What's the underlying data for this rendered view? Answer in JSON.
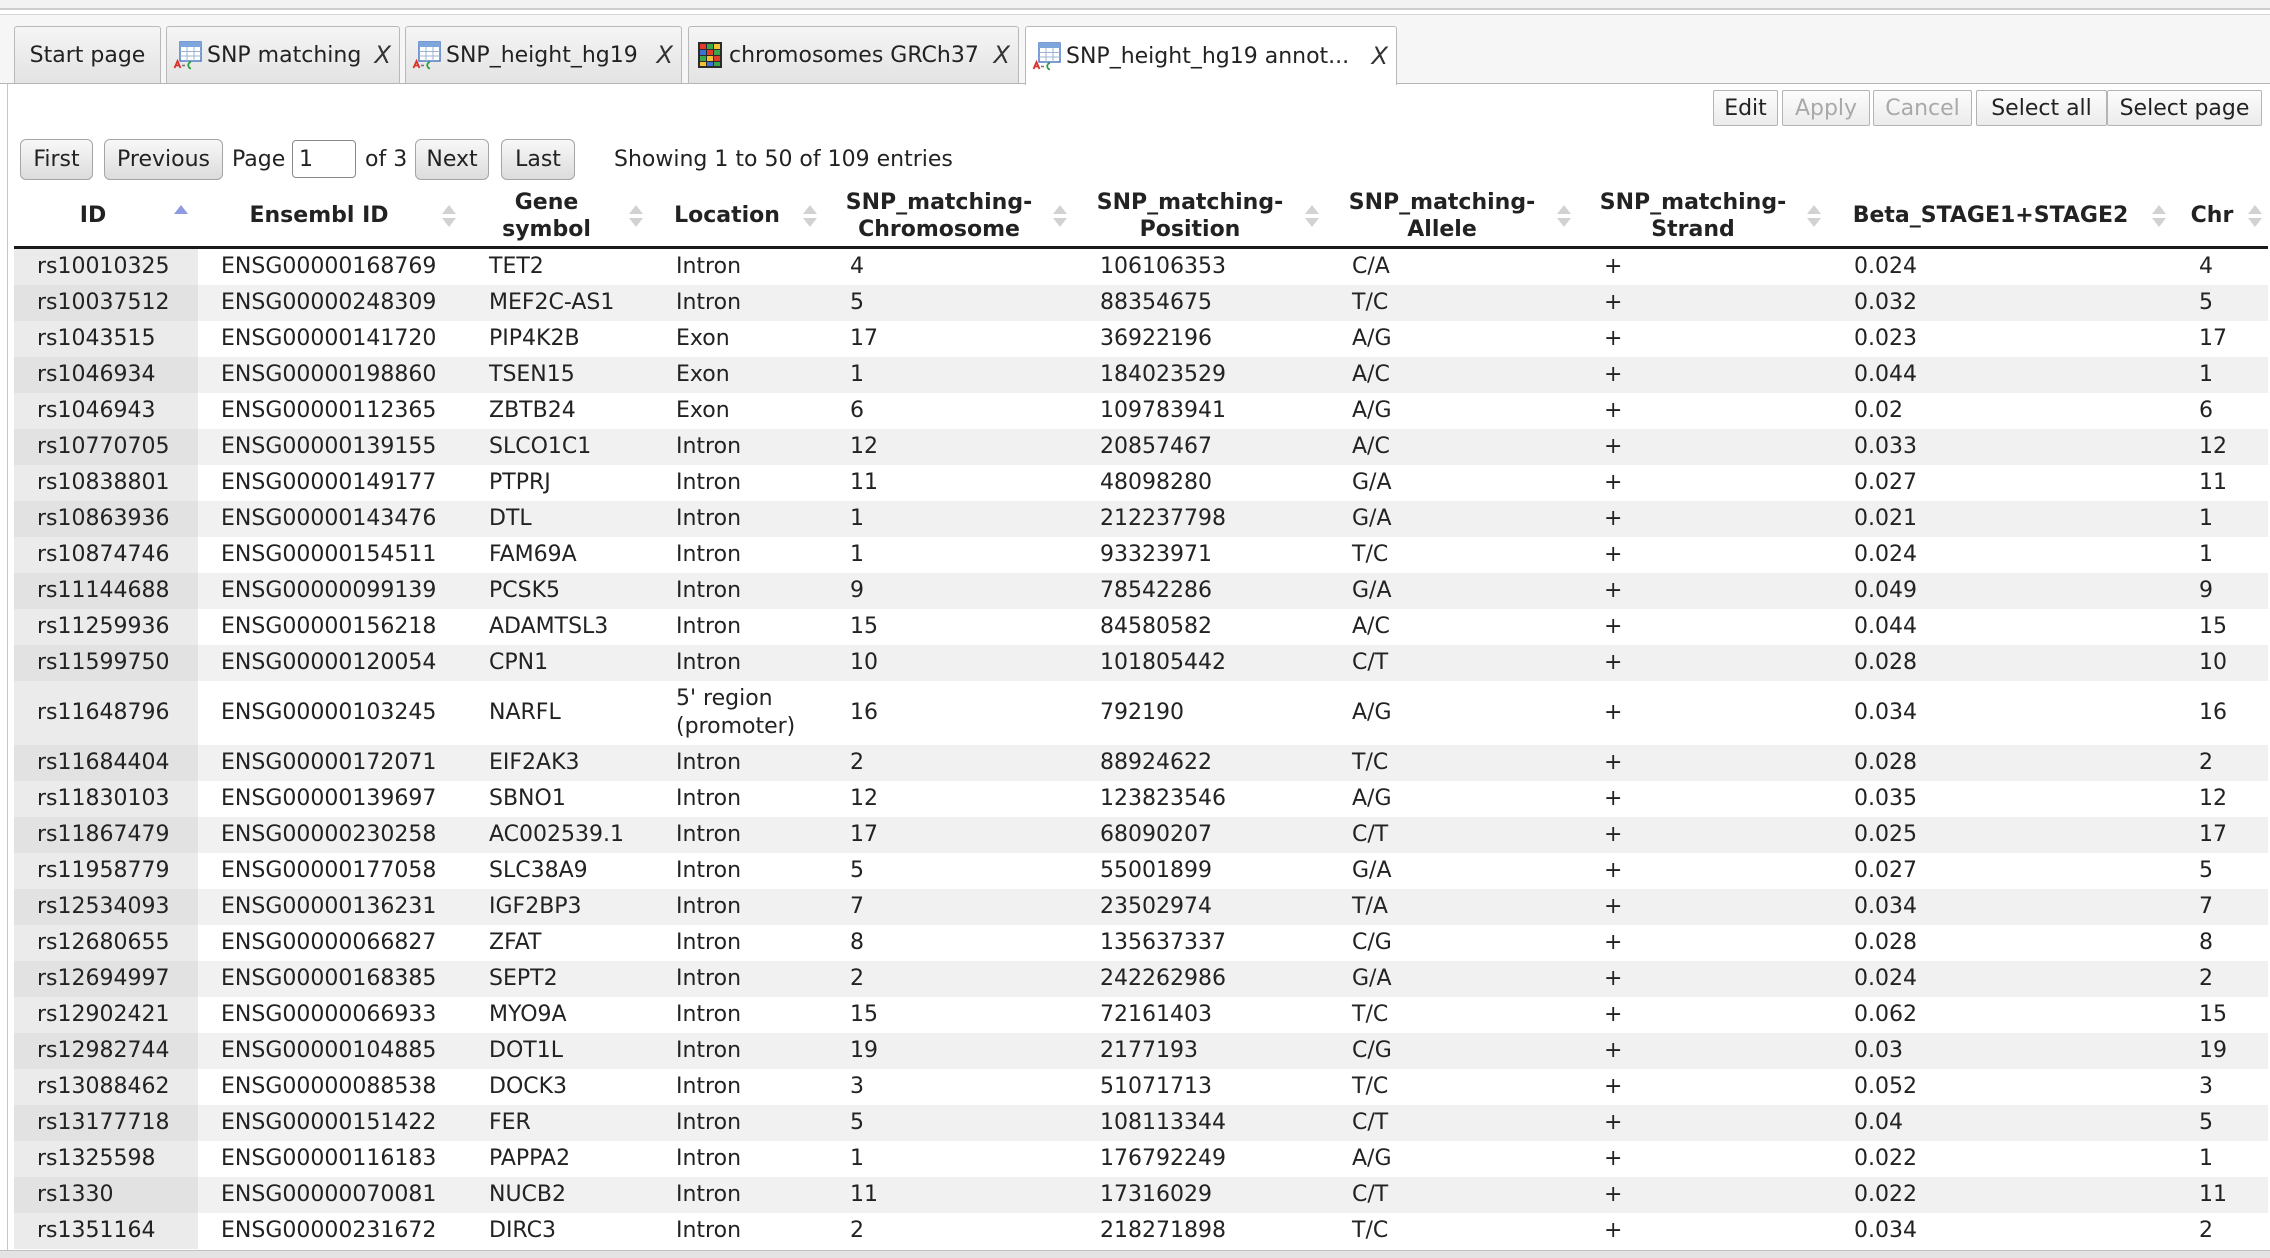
{
  "tabs": [
    {
      "label": "Start page"
    },
    {
      "label": "SNP matching",
      "icon": "table-icon",
      "close": "X"
    },
    {
      "label": "SNP_height_hg19",
      "icon": "table-icon",
      "close": "X"
    },
    {
      "label": "chromosomes GRCh37",
      "icon": "chromosome-grid-icon",
      "close": "X"
    },
    {
      "label": "SNP_height_hg19 annot...",
      "icon": "table-icon",
      "close": "X",
      "active": true
    }
  ],
  "toolbar": {
    "edit": {
      "label": "Edit",
      "enabled": true
    },
    "apply": {
      "label": "Apply",
      "enabled": false
    },
    "cancel": {
      "label": "Cancel",
      "enabled": false
    },
    "select_all": {
      "label": "Select all",
      "enabled": true
    },
    "select_page": {
      "label": "Select page",
      "enabled": true
    }
  },
  "pagination": {
    "first": "First",
    "previous": "Previous",
    "page_label": "Page",
    "page_value": "1",
    "of_label": "of 3",
    "next": "Next",
    "last": "Last",
    "info": "Showing 1 to 50 of 109 entries"
  },
  "table": {
    "columns": [
      "ID",
      "Ensembl ID",
      "Gene symbol",
      "Location",
      "SNP_matching-Chromosome",
      "SNP_matching-Position",
      "SNP_matching-Allele",
      "SNP_matching-Strand",
      "Beta_STAGE1+STAGE2",
      "Chr"
    ],
    "sorted_column_icon": "sort-ascending-icon",
    "unsorted_column_icon": "sort-both-icon",
    "rows": [
      [
        "rs10010325",
        "ENSG00000168769",
        "TET2",
        "Intron",
        "4",
        "106106353",
        "C/A",
        "+",
        "0.024",
        "4"
      ],
      [
        "rs10037512",
        "ENSG00000248309",
        "MEF2C-AS1",
        "Intron",
        "5",
        "88354675",
        "T/C",
        "+",
        "0.032",
        "5"
      ],
      [
        "rs1043515",
        "ENSG00000141720",
        "PIP4K2B",
        "Exon",
        "17",
        "36922196",
        "A/G",
        "+",
        "0.023",
        "17"
      ],
      [
        "rs1046934",
        "ENSG00000198860",
        "TSEN15",
        "Exon",
        "1",
        "184023529",
        "A/C",
        "+",
        "0.044",
        "1"
      ],
      [
        "rs1046943",
        "ENSG00000112365",
        "ZBTB24",
        "Exon",
        "6",
        "109783941",
        "A/G",
        "+",
        "0.02",
        "6"
      ],
      [
        "rs10770705",
        "ENSG00000139155",
        "SLCO1C1",
        "Intron",
        "12",
        "20857467",
        "A/C",
        "+",
        "0.033",
        "12"
      ],
      [
        "rs10838801",
        "ENSG00000149177",
        "PTPRJ",
        "Intron",
        "11",
        "48098280",
        "G/A",
        "+",
        "0.027",
        "11"
      ],
      [
        "rs10863936",
        "ENSG00000143476",
        "DTL",
        "Intron",
        "1",
        "212237798",
        "G/A",
        "+",
        "0.021",
        "1"
      ],
      [
        "rs10874746",
        "ENSG00000154511",
        "FAM69A",
        "Intron",
        "1",
        "93323971",
        "T/C",
        "+",
        "0.024",
        "1"
      ],
      [
        "rs11144688",
        "ENSG00000099139",
        "PCSK5",
        "Intron",
        "9",
        "78542286",
        "G/A",
        "+",
        "0.049",
        "9"
      ],
      [
        "rs11259936",
        "ENSG00000156218",
        "ADAMTSL3",
        "Intron",
        "15",
        "84580582",
        "A/C",
        "+",
        "0.044",
        "15"
      ],
      [
        "rs11599750",
        "ENSG00000120054",
        "CPN1",
        "Intron",
        "10",
        "101805442",
        "C/T",
        "+",
        "0.028",
        "10"
      ],
      [
        "rs11648796",
        "ENSG00000103245",
        "NARFL",
        "5' region (promoter)",
        "16",
        "792190",
        "A/G",
        "+",
        "0.034",
        "16"
      ],
      [
        "rs11684404",
        "ENSG00000172071",
        "EIF2AK3",
        "Intron",
        "2",
        "88924622",
        "T/C",
        "+",
        "0.028",
        "2"
      ],
      [
        "rs11830103",
        "ENSG00000139697",
        "SBNO1",
        "Intron",
        "12",
        "123823546",
        "A/G",
        "+",
        "0.035",
        "12"
      ],
      [
        "rs11867479",
        "ENSG00000230258",
        "AC002539.1",
        "Intron",
        "17",
        "68090207",
        "C/T",
        "+",
        "0.025",
        "17"
      ],
      [
        "rs11958779",
        "ENSG00000177058",
        "SLC38A9",
        "Intron",
        "5",
        "55001899",
        "G/A",
        "+",
        "0.027",
        "5"
      ],
      [
        "rs12534093",
        "ENSG00000136231",
        "IGF2BP3",
        "Intron",
        "7",
        "23502974",
        "T/A",
        "+",
        "0.034",
        "7"
      ],
      [
        "rs12680655",
        "ENSG00000066827",
        "ZFAT",
        "Intron",
        "8",
        "135637337",
        "C/G",
        "+",
        "0.028",
        "8"
      ],
      [
        "rs12694997",
        "ENSG00000168385",
        "SEPT2",
        "Intron",
        "2",
        "242262986",
        "G/A",
        "+",
        "0.024",
        "2"
      ],
      [
        "rs12902421",
        "ENSG00000066933",
        "MYO9A",
        "Intron",
        "15",
        "72161403",
        "T/C",
        "+",
        "0.062",
        "15"
      ],
      [
        "rs12982744",
        "ENSG00000104885",
        "DOT1L",
        "Intron",
        "19",
        "2177193",
        "C/G",
        "+",
        "0.03",
        "19"
      ],
      [
        "rs13088462",
        "ENSG00000088538",
        "DOCK3",
        "Intron",
        "3",
        "51071713",
        "T/C",
        "+",
        "0.052",
        "3"
      ],
      [
        "rs13177718",
        "ENSG00000151422",
        "FER",
        "Intron",
        "5",
        "108113344",
        "C/T",
        "+",
        "0.04",
        "5"
      ],
      [
        "rs1325598",
        "ENSG00000116183",
        "PAPPA2",
        "Intron",
        "1",
        "176792249",
        "A/G",
        "+",
        "0.022",
        "1"
      ],
      [
        "rs1330",
        "ENSG00000070081",
        "NUCB2",
        "Intron",
        "11",
        "17316029",
        "C/T",
        "+",
        "0.022",
        "11"
      ],
      [
        "rs1351164",
        "ENSG00000231672",
        "DIRC3",
        "Intron",
        "2",
        "218271898",
        "T/C",
        "+",
        "0.034",
        "2"
      ]
    ]
  },
  "colors": {
    "sort_active": "#8e9be0",
    "sort_inactive": "#d2d2d2",
    "disabled_text": "#a9a9a9",
    "row_stripe": "#f1f1f1",
    "sorted_cell": "#ebebeb",
    "sorted_cell_stripe": "#e2e2e2"
  }
}
